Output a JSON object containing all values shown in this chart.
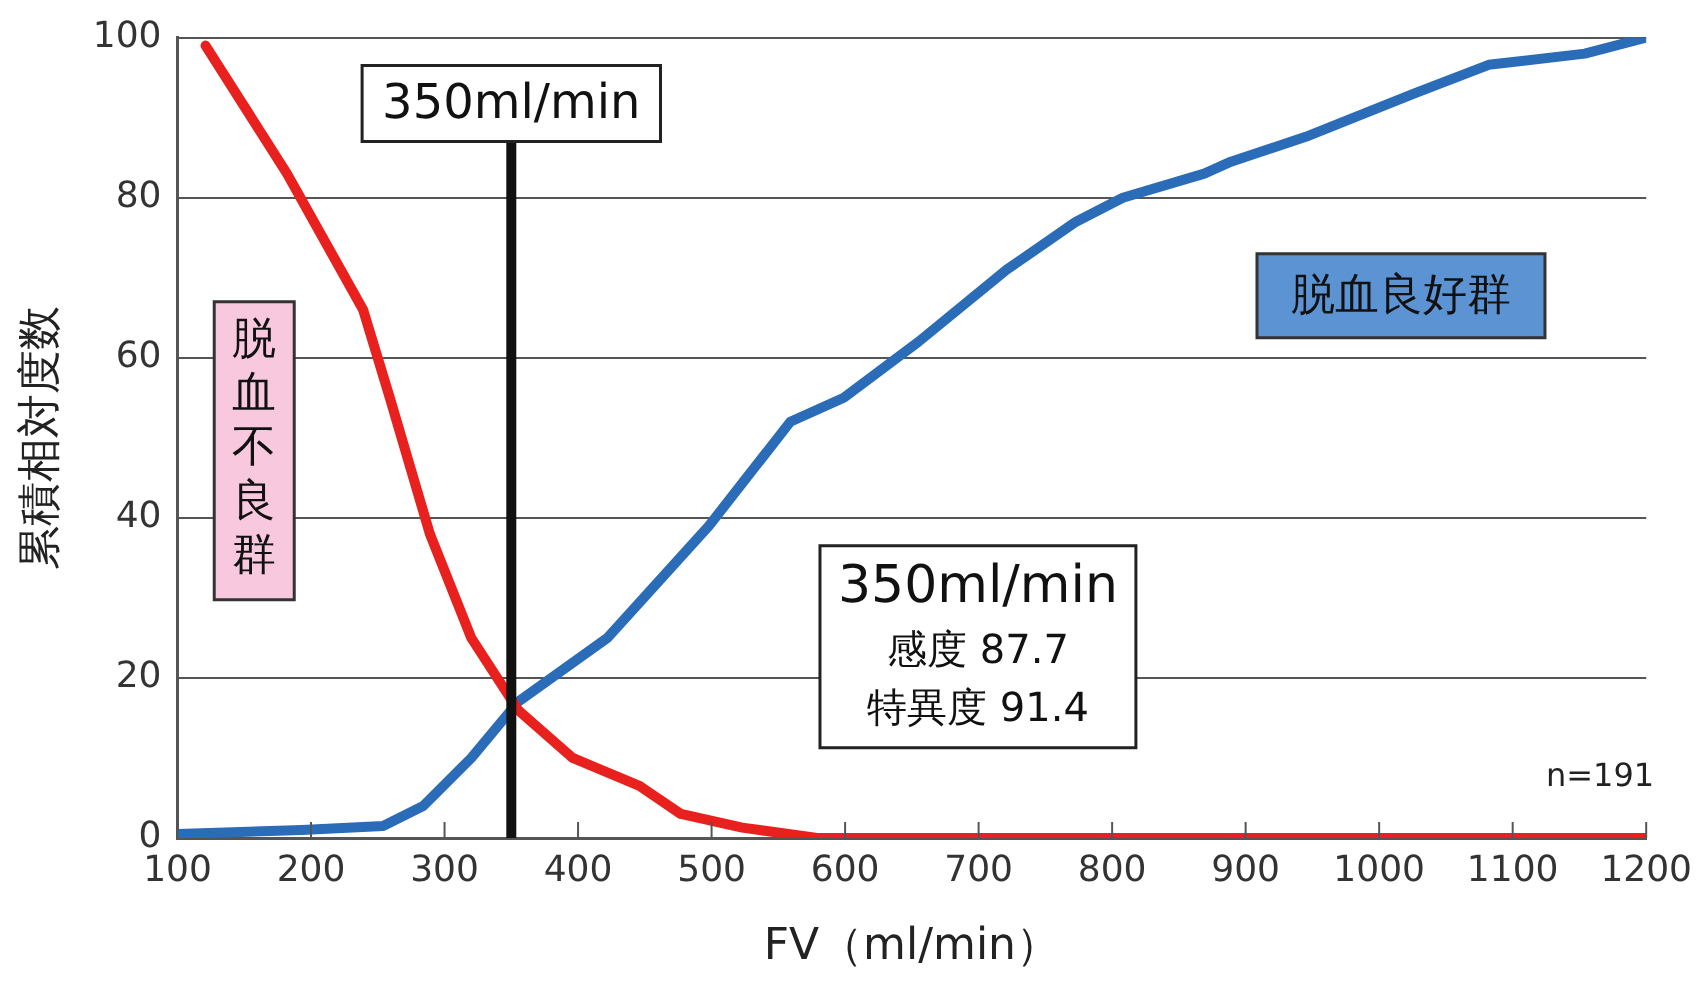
{
  "chart_data": {
    "type": "line",
    "xlabel": "FV（ml/min）",
    "ylabel": "累積相対度数",
    "xlim": [
      100,
      1200
    ],
    "xticks": [
      100,
      200,
      300,
      400,
      500,
      600,
      700,
      800,
      900,
      1000,
      1100,
      1200
    ],
    "ylim": [
      0,
      100
    ],
    "yticks": [
      0,
      20,
      40,
      60,
      80,
      100
    ],
    "grid": "y",
    "legend": false,
    "marker": "none",
    "line_style": "solid",
    "series": [
      {
        "name": "脱血不良群",
        "color": "#e8201e",
        "x": [
          121,
          182,
          239,
          259,
          289,
          320,
          355,
          396,
          446,
          477,
          523,
          579,
          1200
        ],
        "values": [
          99,
          83,
          66,
          55,
          38,
          25,
          16,
          10,
          6.5,
          3,
          1.3,
          0,
          0
        ]
      },
      {
        "name": "脱血良好群",
        "color": "#2a6cb8",
        "x": [
          100,
          193,
          254,
          284,
          320,
          355,
          422,
          498,
          559,
          599,
          655,
          721,
          773,
          808,
          869,
          889,
          945,
          1026,
          1082,
          1154,
          1200
        ],
        "values": [
          0.5,
          1,
          1.5,
          4,
          10,
          17,
          25,
          39,
          52,
          55,
          62,
          71,
          77,
          80,
          83,
          84.5,
          87.6,
          93,
          96.6,
          98,
          100
        ]
      }
    ],
    "ref_lines": [
      {
        "axis": "x",
        "value": 350,
        "label": "350ml/min",
        "color": "#111111"
      }
    ],
    "annotations": [
      "350ml/min",
      "感度 87.7",
      "特異度 91.4",
      "n=191"
    ]
  }
}
